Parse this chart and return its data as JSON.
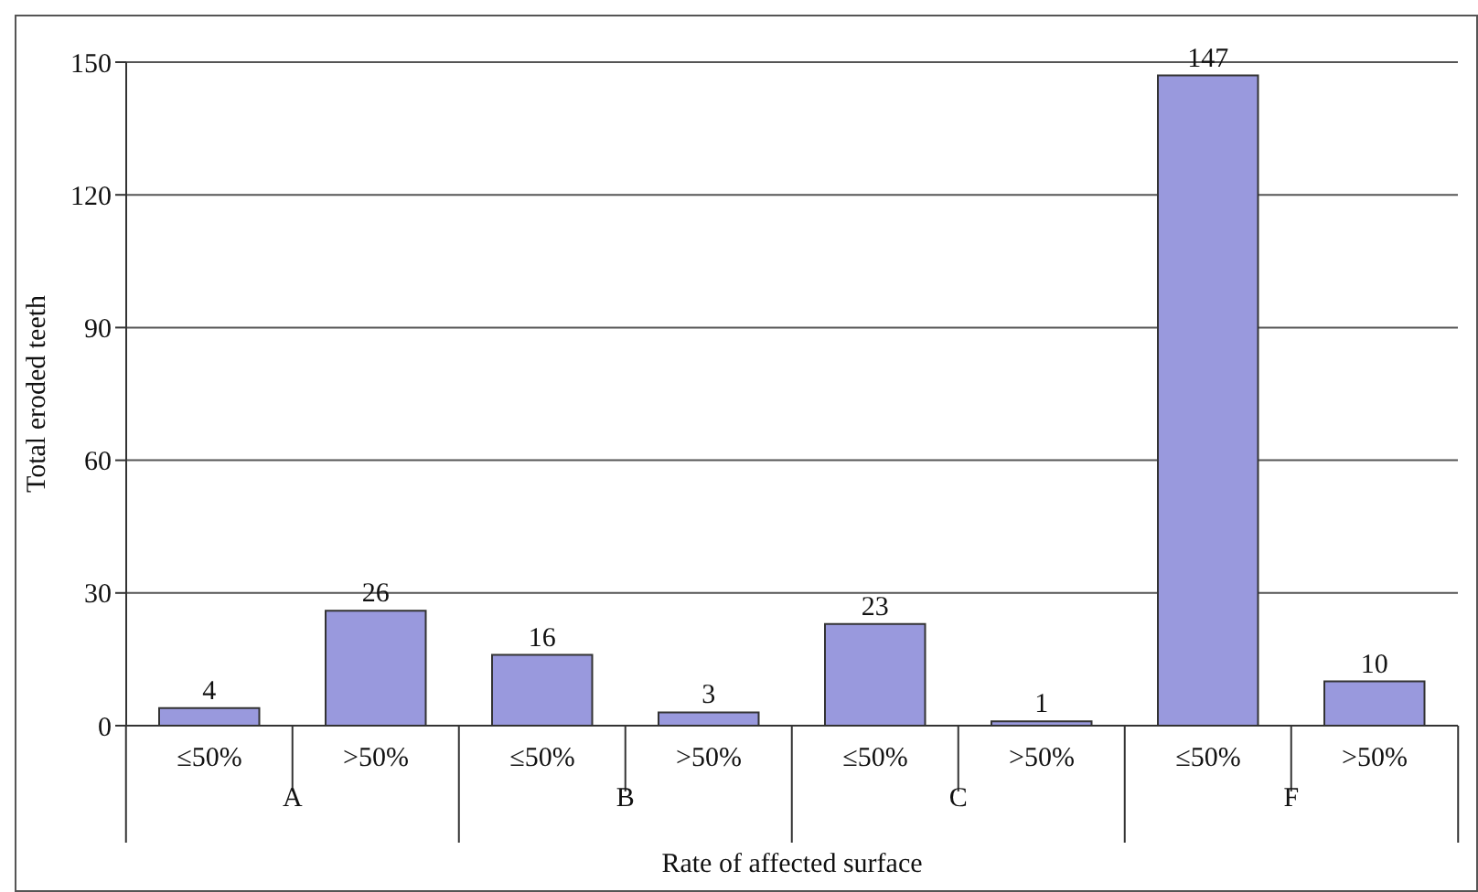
{
  "chart_data": {
    "type": "bar",
    "xlabel": "Rate of affected surface",
    "ylabel": "Total eroded teeth",
    "categories": [
      "≤50%",
      ">50%",
      "≤50%",
      ">50%",
      "≤50%",
      ">50%",
      "≤50%",
      ">50%"
    ],
    "values": [
      4,
      26,
      16,
      3,
      23,
      1,
      147,
      10
    ],
    "color": "#9999dd",
    "ylim": [
      0,
      150
    ],
    "yticks": [
      0,
      30,
      60,
      90,
      120,
      150
    ],
    "grid": "y",
    "data_labels": true,
    "annotations": [
      "A",
      "B",
      "C",
      "F"
    ]
  }
}
